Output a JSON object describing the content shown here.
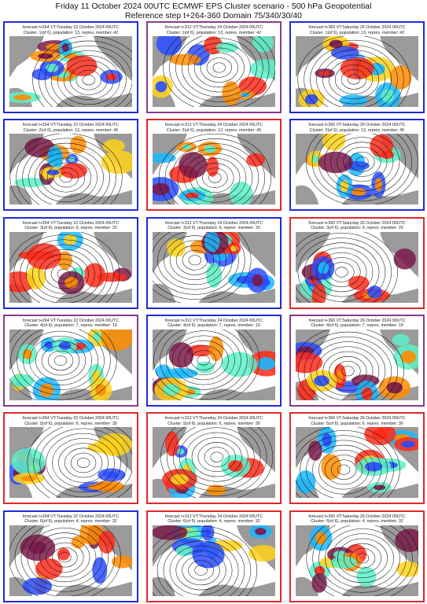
{
  "header": {
    "line1": "Friday 11 October 2024 00UTC ECMWF EPS Cluster scenario - 500 hPa Geopotential",
    "line2": "Reference step t+264-360 Domain 75/340/30/40"
  },
  "colors": {
    "blue_frame": "#1f2bd9",
    "red_frame": "#e02828",
    "purple_frame": "#8a3a8a",
    "land": "#9b9b9b"
  },
  "panels": [
    {
      "forecast": "forecast t+264 VT:Tuesday 22 October 2024 00UTC",
      "cluster": "Cluster: 1(of 6), population: 13, repres. member: 42",
      "frame": "blue"
    },
    {
      "forecast": "forecast t+312 VT:Thursday 24 October 2024 00UTC",
      "cluster": "Cluster: 1(of 6), population: 13, repres. member: 42",
      "frame": "purple"
    },
    {
      "forecast": "forecast t+360 VT:Saturday 26 October 2024 00UTC",
      "cluster": "Cluster: 1(of 6), population: 13, repres. member: 42",
      "frame": "blue"
    },
    {
      "forecast": "forecast t+264 VT:Tuesday 22 October 2024 00UTC",
      "cluster": "Cluster: 2(of 6), population: 12, repres. member: 45",
      "frame": "blue"
    },
    {
      "forecast": "forecast t+312 VT:Thursday 24 October 2024 00UTC",
      "cluster": "Cluster: 2(of 6), population: 12, repres. member: 45",
      "frame": "red"
    },
    {
      "forecast": "forecast t+360 VT:Saturday 26 October 2024 00UTC",
      "cluster": "Cluster: 2(of 6), population: 12, repres. member: 45",
      "frame": "blue"
    },
    {
      "forecast": "forecast t+264 VT:Tuesday 22 October 2024 00UTC",
      "cluster": "Cluster: 3(of 6), population: 9, repres. member: 20",
      "frame": "blue"
    },
    {
      "forecast": "forecast t+312 VT:Thursday 24 October 2024 00UTC",
      "cluster": "Cluster: 3(of 6), population: 9, repres. member: 20",
      "frame": "blue"
    },
    {
      "forecast": "forecast t+360 VT:Saturday 26 October 2024 00UTC",
      "cluster": "Cluster: 3(of 6), population: 9, repres. member: 20",
      "frame": "red"
    },
    {
      "forecast": "forecast t+264 VT:Tuesday 22 October 2024 00UTC",
      "cluster": "Cluster: 4(of 6), population: 7, repres. member: 19",
      "frame": "purple"
    },
    {
      "forecast": "forecast t+312 VT:Thursday 24 October 2024 00UTC",
      "cluster": "Cluster: 4(of 6), population: 7, repres. member: 19",
      "frame": "blue"
    },
    {
      "forecast": "forecast t+360 VT:Saturday 26 October 2024 00UTC",
      "cluster": "Cluster: 4(of 6), population: 7, repres. member: 19",
      "frame": "purple"
    },
    {
      "forecast": "forecast t+264 VT:Tuesday 22 October 2024 00UTC",
      "cluster": "Cluster: 5(of 6), population: 6, repres. member: 30",
      "frame": "red"
    },
    {
      "forecast": "forecast t+312 VT:Thursday 24 October 2024 00UTC",
      "cluster": "Cluster: 5(of 6), population: 6, repres. member: 30",
      "frame": "red"
    },
    {
      "forecast": "forecast t+360 VT:Saturday 26 October 2024 00UTC",
      "cluster": "Cluster: 5(of 6), population: 6, repres. member: 30",
      "frame": "red"
    },
    {
      "forecast": "forecast t+264 VT:Tuesday 22 October 2024 00UTC",
      "cluster": "Cluster: 6(of 6), population: 4, repres. member: 32",
      "frame": "blue"
    },
    {
      "forecast": "forecast t+312 VT:Thursday 24 October 2024 00UTC",
      "cluster": "Cluster: 6(of 6), population: 4, repres. member: 32",
      "frame": "red"
    },
    {
      "forecast": "forecast t+360 VT:Saturday 26 October 2024 00UTC",
      "cluster": "Cluster: 6(of 6), population: 4, repres. member: 32",
      "frame": "red"
    }
  ]
}
